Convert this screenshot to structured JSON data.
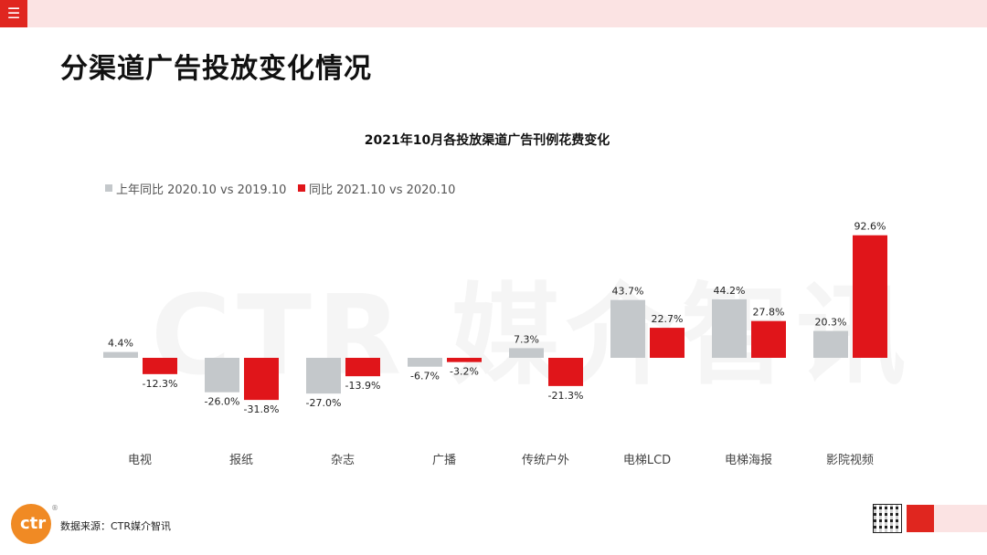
{
  "header": {
    "menu_icon": "menu-icon",
    "menu_glyph": "☰"
  },
  "page_title": "分渠道广告投放变化情况",
  "watermark": "CTR 媒介智讯",
  "footer": {
    "logo_text": "ctr",
    "logo_reg": "®",
    "source": "数据来源：CTR媒介智讯"
  },
  "colors": {
    "prior": "#c4c8cb",
    "current": "#e0151a",
    "accent": "#e0261f"
  },
  "chart_data": {
    "type": "bar",
    "title": "2021年10月各投放渠道广告刊例花费变化",
    "categories": [
      "电视",
      "报纸",
      "杂志",
      "广播",
      "传统户外",
      "电梯LCD",
      "电梯海报",
      "影院视频"
    ],
    "series": [
      {
        "name": "上年同比 2020.10 vs 2019.10",
        "values": [
          4.4,
          -26.0,
          -27.0,
          -6.7,
          7.3,
          43.7,
          44.2,
          20.3
        ]
      },
      {
        "name": "同比 2021.10 vs 2020.10",
        "values": [
          -12.3,
          -31.8,
          -13.9,
          -3.2,
          -21.3,
          22.7,
          27.8,
          92.6
        ]
      }
    ],
    "value_labels": [
      [
        "4.4%",
        "-26.0%",
        "-27.0%",
        "-6.7%",
        "7.3%",
        "43.7%",
        "44.2%",
        "20.3%"
      ],
      [
        "-12.3%",
        "-31.8%",
        "-13.9%",
        "-3.2%",
        "-21.3%",
        "22.7%",
        "27.8%",
        "92.6%"
      ]
    ],
    "unit": "%",
    "legend_position": "top-left",
    "grid": false
  }
}
